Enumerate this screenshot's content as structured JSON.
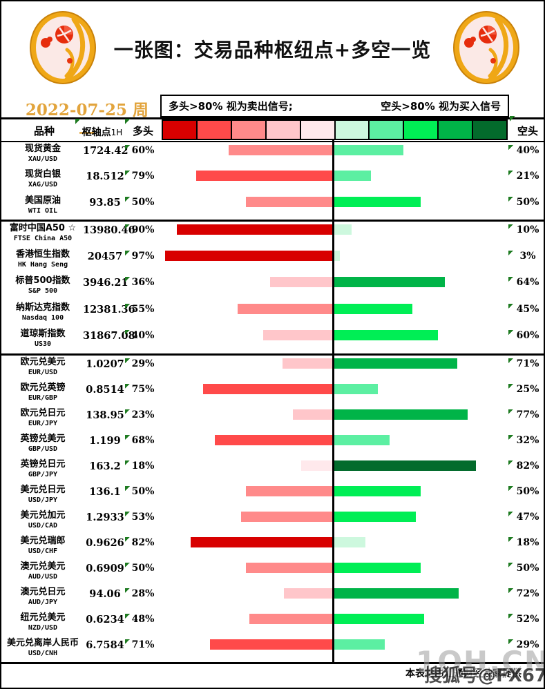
{
  "title": "一张图：交易品种枢纽点+多空一览",
  "date": "2022-07-25 周一",
  "legend": {
    "long_note": "多头>80% 视为卖出信号;",
    "short_note": "空头>80% 视为买入信号"
  },
  "columns": {
    "instrument": "品种",
    "pivot": "枢轴点",
    "pivot_unit": "1H",
    "long": "多头",
    "short": "空头"
  },
  "scale": {
    "red": [
      "#D80000",
      "#FF4A4A",
      "#FF8A8A",
      "#FFC6CA",
      "#FFE9EC"
    ],
    "green": [
      "#CDF8DE",
      "#5CEFA2",
      "#00EE55",
      "#00B448",
      "#036B2C"
    ]
  },
  "colors": {
    "date_text": "#E2A43C",
    "flag": "#1E7B21",
    "title_text": "#101010"
  },
  "footer": {
    "credit": "本表格由汇通财经独家提供",
    "watermark_light": "1OH.CN",
    "watermark_dark": "搜狐号@FX678"
  },
  "chart_data": {
    "type": "bar",
    "title": "一张图：交易品种枢纽点+多空一览",
    "date": "2022-07-25 周一",
    "series_names": [
      "多头",
      "空头"
    ],
    "unit": "%",
    "layout_hint": "diverging bars from center; red=long grows left, green=short grows right; color darkens per 20% bin",
    "groups": [
      "商品 rows 0-2",
      "指数 rows 3-7",
      "外汇 rows 8-19"
    ],
    "rows": [
      {
        "instrument": "现货黄金",
        "code": "XAU/USD",
        "pivot": "1724.42",
        "long_pct": 60,
        "short_pct": 40,
        "group": 0
      },
      {
        "instrument": "现货白银",
        "code": "XAG/USD",
        "pivot": "18.512",
        "long_pct": 79,
        "short_pct": 21,
        "group": 0
      },
      {
        "instrument": "美国原油",
        "code": "WTI OIL",
        "pivot": "93.85",
        "long_pct": 50,
        "short_pct": 50,
        "group": 0
      },
      {
        "instrument": "富时中国A50 ☆",
        "code": "FTSE China A50",
        "pivot": "13980.46",
        "long_pct": 90,
        "short_pct": 10,
        "group": 1
      },
      {
        "instrument": "香港恒生指数",
        "code": "HK Hang Seng",
        "pivot": "20457",
        "long_pct": 97,
        "short_pct": 3,
        "group": 1
      },
      {
        "instrument": "标普500指数",
        "code": "S&P 500",
        "pivot": "3946.21",
        "long_pct": 36,
        "short_pct": 64,
        "group": 1
      },
      {
        "instrument": "纳斯达克指数",
        "code": "Nasdaq 100",
        "pivot": "12381.36",
        "long_pct": 55,
        "short_pct": 45,
        "group": 1
      },
      {
        "instrument": "道琼斯指数",
        "code": "US30",
        "pivot": "31867.08",
        "long_pct": 40,
        "short_pct": 60,
        "group": 1
      },
      {
        "instrument": "欧元兑美元",
        "code": "EUR/USD",
        "pivot": "1.0207",
        "long_pct": 29,
        "short_pct": 71,
        "group": 2
      },
      {
        "instrument": "欧元兑英镑",
        "code": "EUR/GBP",
        "pivot": "0.8514",
        "long_pct": 75,
        "short_pct": 25,
        "group": 2
      },
      {
        "instrument": "欧元兑日元",
        "code": "EUR/JPY",
        "pivot": "138.95",
        "long_pct": 23,
        "short_pct": 77,
        "group": 2
      },
      {
        "instrument": "英镑兑美元",
        "code": "GBP/USD",
        "pivot": "1.199",
        "long_pct": 68,
        "short_pct": 32,
        "group": 2
      },
      {
        "instrument": "英镑兑日元",
        "code": "GBP/JPY",
        "pivot": "163.2",
        "long_pct": 18,
        "short_pct": 82,
        "group": 2
      },
      {
        "instrument": "美元兑日元",
        "code": "USD/JPY",
        "pivot": "136.1",
        "long_pct": 50,
        "short_pct": 50,
        "group": 2
      },
      {
        "instrument": "美元兑加元",
        "code": "USD/CAD",
        "pivot": "1.2933",
        "long_pct": 53,
        "short_pct": 47,
        "group": 2
      },
      {
        "instrument": "美元兑瑞郎",
        "code": "USD/CHF",
        "pivot": "0.9626",
        "long_pct": 82,
        "short_pct": 18,
        "group": 2
      },
      {
        "instrument": "澳元兑美元",
        "code": "AUD/USD",
        "pivot": "0.6909",
        "long_pct": 50,
        "short_pct": 50,
        "group": 2
      },
      {
        "instrument": "澳元兑日元",
        "code": "AUD/JPY",
        "pivot": "94.06",
        "long_pct": 28,
        "short_pct": 72,
        "group": 2
      },
      {
        "instrument": "纽元兑美元",
        "code": "NZD/USD",
        "pivot": "0.6234",
        "long_pct": 48,
        "short_pct": 52,
        "group": 2
      },
      {
        "instrument": "美元兑离岸人民币",
        "code": "USD/CNH",
        "pivot": "6.7584",
        "long_pct": 71,
        "short_pct": 29,
        "group": 2
      }
    ]
  }
}
